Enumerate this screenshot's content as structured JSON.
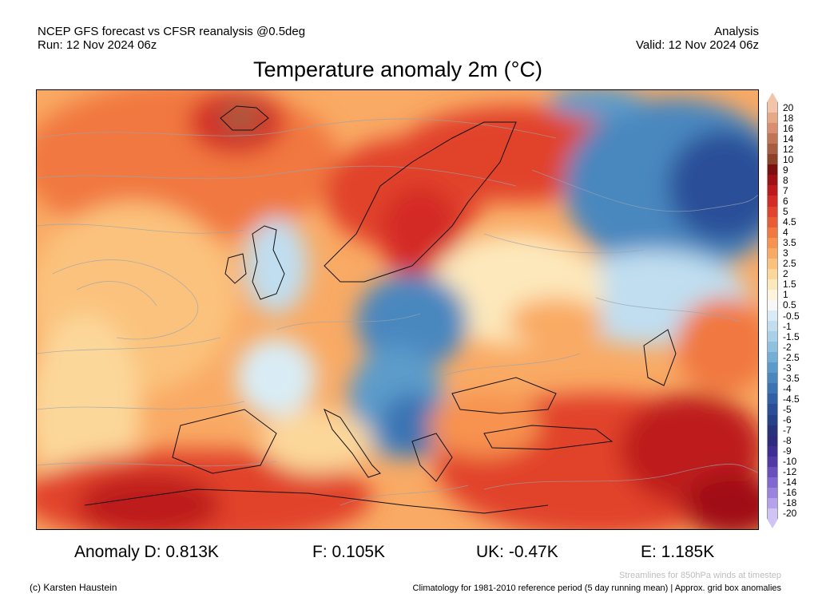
{
  "header": {
    "left_line1": "NCEP GFS forecast vs CFSR reanalysis @0.5deg",
    "left_line2": "Run: 12 Nov 2024 06z",
    "right_line1": "Analysis",
    "right_line2": "Valid: 12 Nov 2024 06z"
  },
  "title": "Temperature anomaly 2m (°C)",
  "colorbar": {
    "levels": [
      "20",
      "18",
      "16",
      "14",
      "12",
      "10",
      "9",
      "8",
      "7",
      "6",
      "5",
      "4.5",
      "4",
      "3.5",
      "3",
      "2.5",
      "2",
      "1.5",
      "1",
      "0.5",
      "-0.5",
      "-1",
      "-1.5",
      "-2",
      "-2.5",
      "-3",
      "-3.5",
      "-4",
      "-4.5",
      "-5",
      "-6",
      "-7",
      "-8",
      "-9",
      "-10",
      "-12",
      "-14",
      "-16",
      "-18",
      "-20"
    ],
    "colors": [
      "#f2c4aa",
      "#e7a888",
      "#d98f6f",
      "#c07555",
      "#a85c40",
      "#8e4128",
      "#7c0f0f",
      "#a01015",
      "#be1a1e",
      "#d42c25",
      "#e1432c",
      "#ea5d34",
      "#f17840",
      "#f79250",
      "#f9aa64",
      "#fbc27d",
      "#fcd79a",
      "#fde8bb",
      "#fdf4dd",
      "#f7f7f7",
      "#d9ecf5",
      "#c0def0",
      "#a8d0e8",
      "#8ec0e0",
      "#73aed6",
      "#5b9bcb",
      "#4987bf",
      "#3b73b3",
      "#3160a6",
      "#2a4f98",
      "#26408a",
      "#27327c",
      "#2e2a80",
      "#3e2d92",
      "#523aa6",
      "#6a50bd",
      "#8269d2",
      "#9b84e0",
      "#b6a2ec",
      "#d0c4f5"
    ]
  },
  "stats": {
    "germany": "Anomaly D: 0.813K",
    "france": "F: 0.105K",
    "uk": "UK: -0.47K",
    "spain": "E: 1.185K"
  },
  "footer": {
    "streamline_note": "Streamlines for 850hPa winds at timestep",
    "copyright": "(c) Karsten Haustein",
    "climatology_note": "Climatology for 1981-2010 reference period (5 day running mean) | Approx. grid box anomalies"
  }
}
